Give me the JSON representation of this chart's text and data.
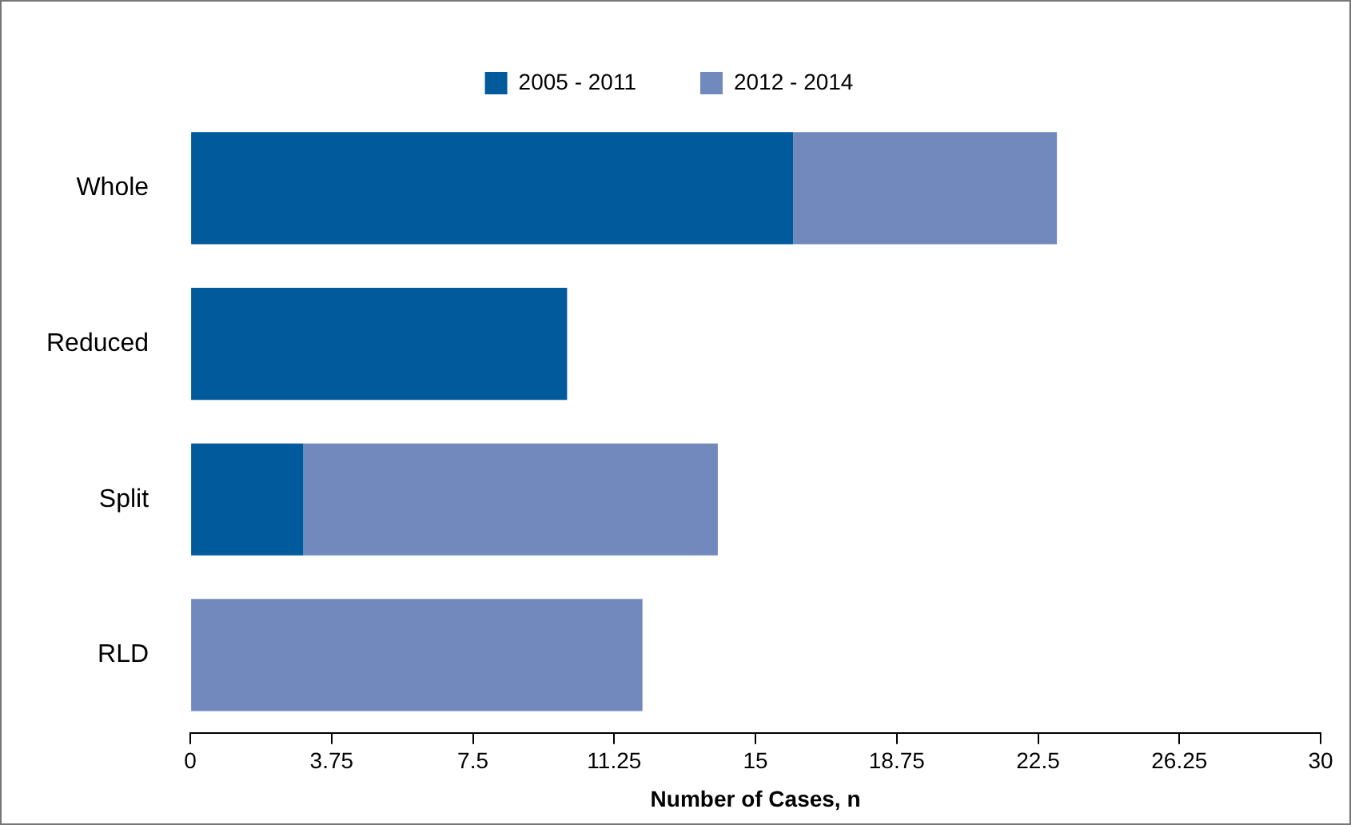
{
  "chart_data": {
    "type": "bar",
    "orientation": "horizontal",
    "stacked": true,
    "xlabel": "Number of Cases, n",
    "categories": [
      "Whole",
      "Reduced",
      "Split",
      "RLD"
    ],
    "series": [
      {
        "name": "2005 - 2011",
        "color": "#005a9c",
        "values": [
          16,
          10,
          3,
          0
        ]
      },
      {
        "name": "2012 - 2014",
        "color": "#7189bd",
        "values": [
          7,
          0,
          11,
          12
        ]
      }
    ],
    "xlim": [
      0,
      30
    ],
    "xticks": [
      0,
      3.75,
      7.5,
      11.25,
      15,
      18.75,
      22.5,
      26.25,
      30
    ],
    "legend": "top"
  }
}
